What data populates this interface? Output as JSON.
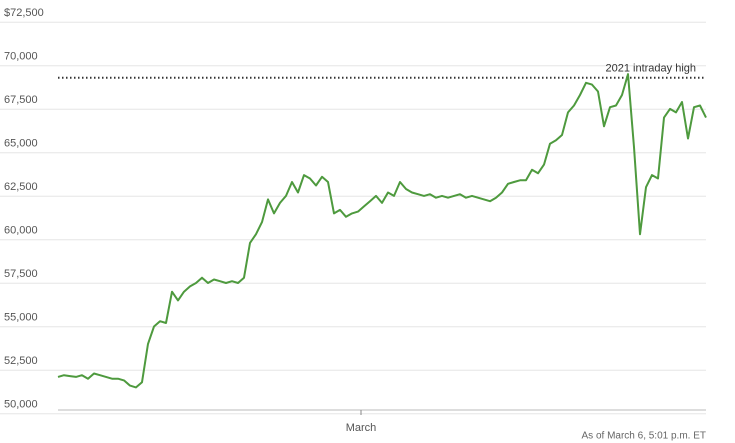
{
  "chart_data": {
    "type": "line",
    "color": "#4e9a3e",
    "grid": true,
    "xlim": [
      0,
      108
    ],
    "xticks": [
      {
        "value": 50.5,
        "label": "March"
      }
    ],
    "ylim": [
      49700,
      72800
    ],
    "yticks": [
      {
        "value": 50000,
        "label": "50,000"
      },
      {
        "value": 52500,
        "label": "52,500"
      },
      {
        "value": 55000,
        "label": "55,000"
      },
      {
        "value": 57500,
        "label": "57,500"
      },
      {
        "value": 60000,
        "label": "60,000"
      },
      {
        "value": 62500,
        "label": "62,500"
      },
      {
        "value": 65000,
        "label": "65,000"
      },
      {
        "value": 67500,
        "label": "67,500"
      },
      {
        "value": 70000,
        "label": "70,000"
      },
      {
        "value": 72500,
        "label": "$72,500"
      }
    ],
    "reference_line": {
      "value": 68789,
      "label": "2021 intraday high"
    },
    "note": "As of March 6, 5:01 p.m. ET",
    "values": [
      51600,
      51700,
      51650,
      51600,
      51700,
      51500,
      51800,
      51700,
      51600,
      51500,
      51500,
      51400,
      51100,
      51000,
      51300,
      53500,
      54500,
      54800,
      54700,
      56500,
      56000,
      56500,
      56800,
      57000,
      57300,
      57000,
      57200,
      57100,
      57000,
      57100,
      57000,
      57300,
      59300,
      59800,
      60500,
      61800,
      61000,
      61600,
      62000,
      62800,
      62200,
      63200,
      63000,
      62600,
      63100,
      62800,
      61000,
      61200,
      60800,
      61000,
      61100,
      61400,
      61700,
      62000,
      61600,
      62200,
      62000,
      62800,
      62400,
      62200,
      62100,
      62000,
      62100,
      61900,
      62000,
      61900,
      62000,
      62100,
      61900,
      62000,
      61900,
      61800,
      61700,
      61900,
      62200,
      62700,
      62800,
      62900,
      62900,
      63500,
      63300,
      63800,
      65000,
      65200,
      65500,
      66800,
      67200,
      67800,
      68500,
      68400,
      68000,
      66000,
      67100,
      67200,
      67800,
      69000,
      64800,
      59800,
      62500,
      63200,
      63000,
      66500,
      67000,
      66800,
      67400,
      65300,
      67100,
      67200,
      66500
    ]
  }
}
